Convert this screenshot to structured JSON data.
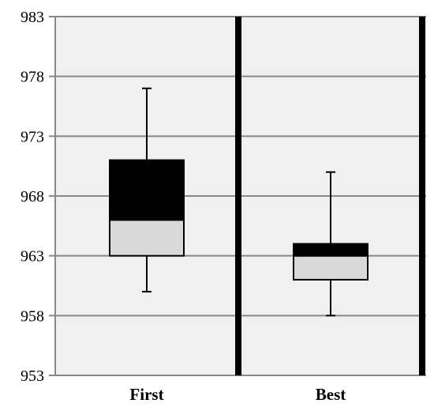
{
  "chart_data": {
    "type": "box",
    "categories": [
      "First",
      "Best"
    ],
    "ylim": [
      953,
      983
    ],
    "yticks": [
      983,
      978,
      973,
      968,
      963,
      958,
      953
    ],
    "grid": true,
    "legend": "none",
    "title": "",
    "xlabel": "",
    "ylabel": "",
    "colors": {
      "plot_background": "#f0f0f0",
      "gridline": "#888888",
      "lower_box": "#d9d9d9",
      "upper_box": "#000000",
      "whisker": "#000000",
      "separator": "#000000"
    },
    "boxes": [
      {
        "category": "First",
        "min": 960,
        "q1": 963,
        "median": 966,
        "q3": 971,
        "max": 977
      },
      {
        "category": "Best",
        "min": 958,
        "q1": 961,
        "median": 963,
        "q3": 964,
        "max": 970
      }
    ]
  }
}
